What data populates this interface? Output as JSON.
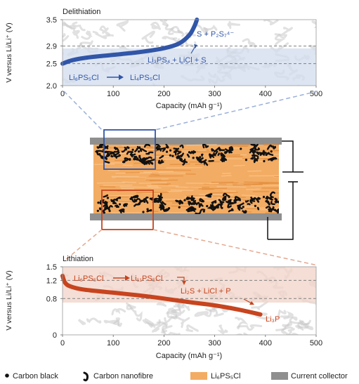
{
  "colors": {
    "blue": "#3156a8",
    "blue_fill": "#d2dcee",
    "red": "#c7441e",
    "red_fill": "#f1d3c7",
    "electrolyte": "#f3ac63",
    "collector": "#8f8f8f",
    "carbon": "#111111",
    "dash": "#808080"
  },
  "top": {
    "title": "Delithiation",
    "ylabel": "V versus Li/Li⁺ (V)",
    "xlabel": "Capacity (mAh g⁻¹)",
    "yticks": [
      "3.5",
      "2.9",
      "2.5",
      "2.0"
    ],
    "xticks": [
      "0",
      "100",
      "200",
      "300",
      "400",
      "500"
    ],
    "labels": {
      "product_high": "S + P₂S₇⁴⁻",
      "product_mid": "Li₃PS₄ + LiCl + S",
      "start": "Li₆PS₅Cl",
      "intermediate": "Li₄PS₅Cl"
    }
  },
  "bottom": {
    "title": "Lithiation",
    "ylabel": "V versus Li/Li⁺ (V)",
    "xlabel": "Capacity (mAh g⁻¹)",
    "yticks": [
      "1.5",
      "1.2",
      "0.8",
      "0"
    ],
    "xticks": [
      "0",
      "100",
      "200",
      "300",
      "400",
      "500"
    ],
    "labels": {
      "start": "Li₆PS₅Cl",
      "intermediate": "Li₁₁PS₅Cl",
      "product_mid": "Li₂S + LiCl + P",
      "product_low": "Li₃P"
    }
  },
  "legend": {
    "carbon_black": "Carbon black",
    "carbon_nanofibre": "Carbon nanofibre",
    "electrolyte": "Li₆PS₅Cl",
    "collector": "Current collector"
  },
  "chart_data": [
    {
      "type": "line",
      "title": "Delithiation",
      "xlabel": "Capacity (mAh g⁻¹)",
      "ylabel": "V versus Li/Li⁺ (V)",
      "xlim": [
        0,
        500
      ],
      "ylim": [
        2.0,
        3.5
      ],
      "reference_lines_y": [
        2.9,
        2.5
      ],
      "x": [
        0,
        20,
        50,
        100,
        150,
        200,
        230,
        250,
        260,
        265
      ],
      "y": [
        2.5,
        2.58,
        2.64,
        2.7,
        2.76,
        2.85,
        2.96,
        3.15,
        3.35,
        3.5
      ]
    },
    {
      "type": "line",
      "title": "Lithiation",
      "xlabel": "Capacity (mAh g⁻¹)",
      "ylabel": "V versus Li/Li⁺ (V)",
      "xlim": [
        0,
        500
      ],
      "ylim": [
        0,
        1.5
      ],
      "reference_lines_y": [
        1.2,
        0.8
      ],
      "x": [
        0,
        5,
        15,
        40,
        100,
        150,
        200,
        250,
        300,
        350,
        390
      ],
      "y": [
        1.3,
        1.15,
        1.07,
        1.0,
        0.93,
        0.87,
        0.8,
        0.72,
        0.65,
        0.55,
        0.45
      ]
    }
  ]
}
